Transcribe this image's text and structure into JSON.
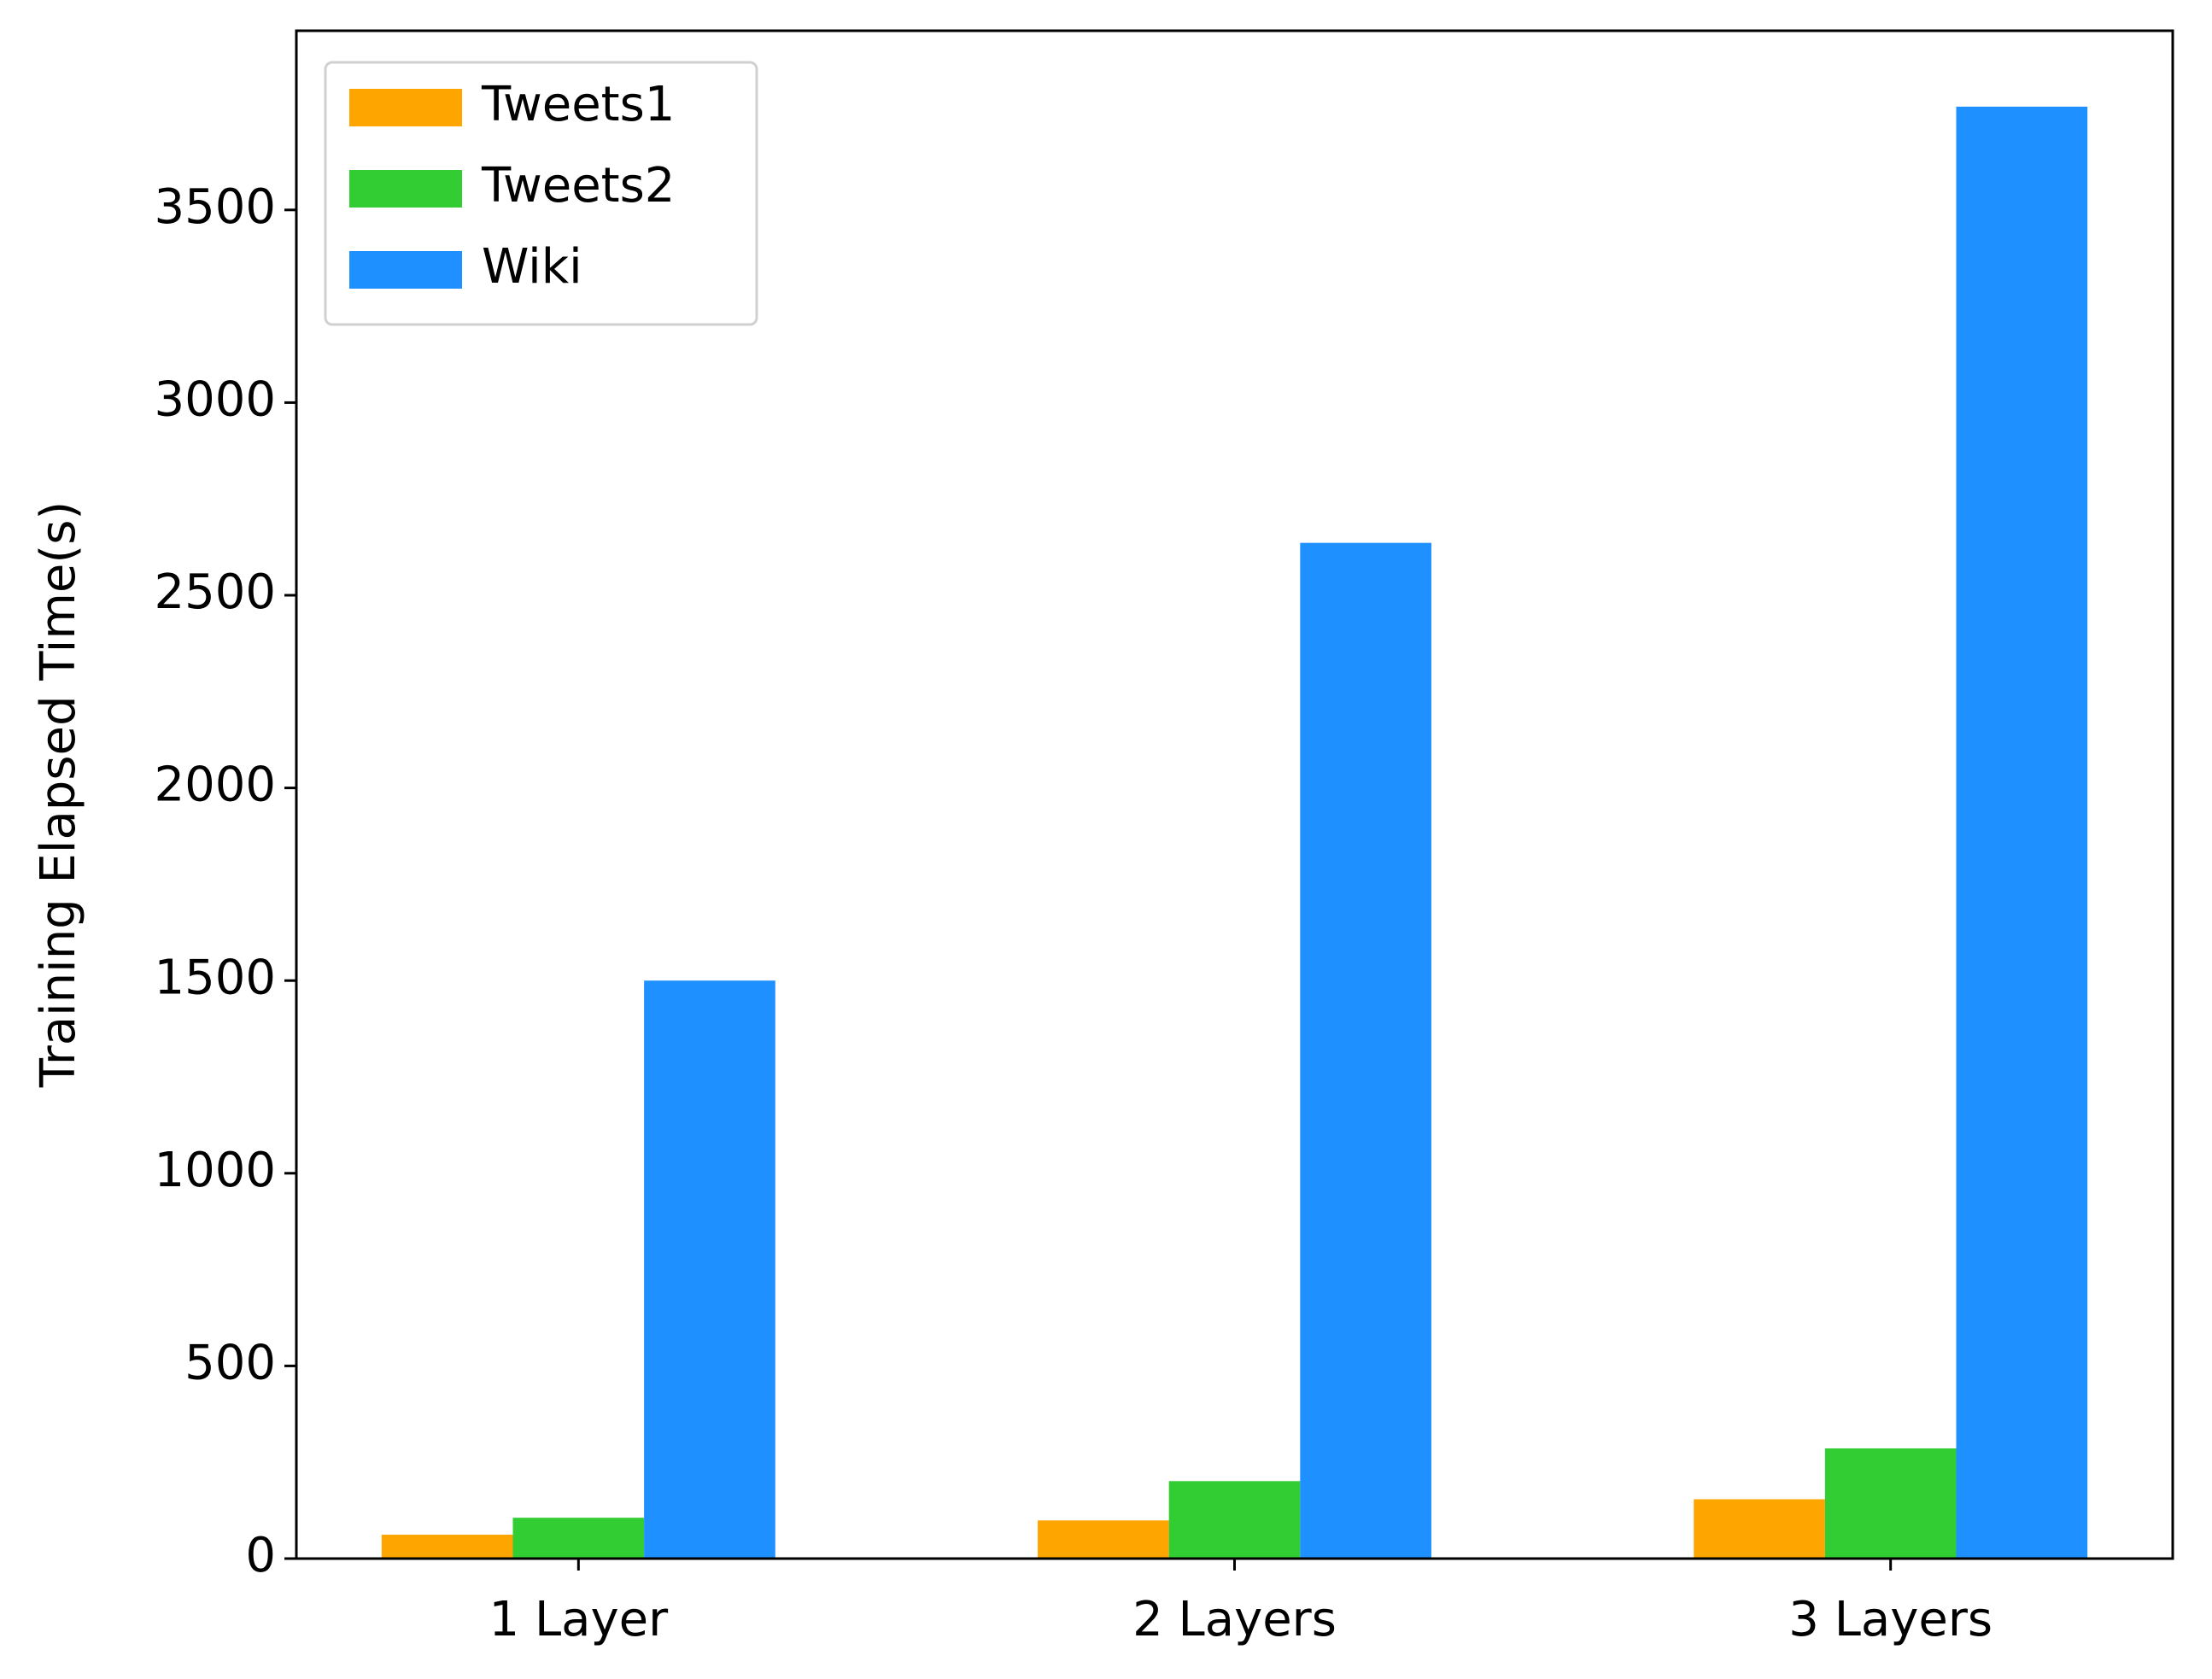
{
  "chart_data": {
    "type": "bar",
    "ylabel": "Training Elapsed Time(s)",
    "categories": [
      "1 Layer",
      "2 Layers",
      "3 Layers"
    ],
    "series": [
      {
        "name": "Tweets1",
        "color": "#ffa500",
        "values": [
          62,
          99,
          154
        ]
      },
      {
        "name": "Tweets2",
        "color": "#32cd32",
        "values": [
          106,
          201,
          286
        ]
      },
      {
        "name": "Wiki",
        "color": "#1e90ff",
        "values": [
          1500,
          2636,
          3768
        ]
      }
    ],
    "ylim": [
      0,
      3965
    ],
    "yticks": [
      0,
      500,
      1000,
      1500,
      2000,
      2500,
      3000,
      3500
    ],
    "legend": "upper left"
  }
}
